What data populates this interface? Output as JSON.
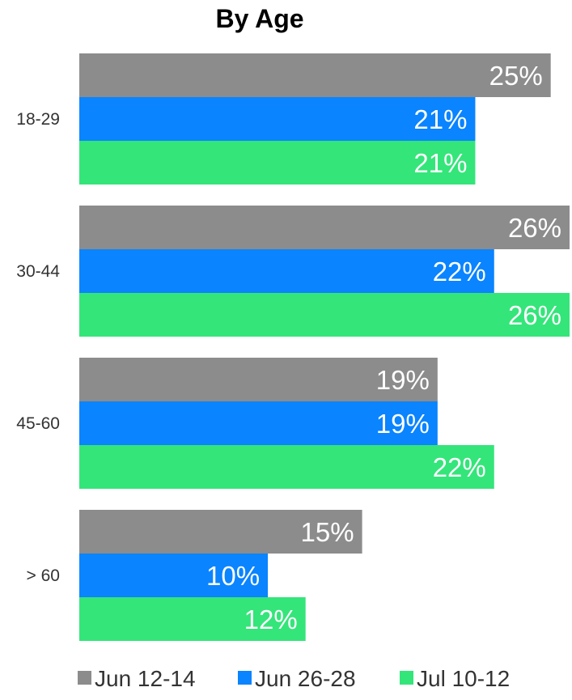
{
  "chart_data": {
    "type": "bar",
    "orientation": "horizontal",
    "title": "By Age",
    "categories": [
      "18-29",
      "30-44",
      "45-60",
      "> 60"
    ],
    "series": [
      {
        "name": "Jun 12-14",
        "color": "#8c8c8c",
        "values": [
          25,
          26,
          19,
          15
        ]
      },
      {
        "name": "Jun 26-28",
        "color": "#0a84ff",
        "values": [
          21,
          22,
          19,
          10
        ]
      },
      {
        "name": "Jul 10-12",
        "color": "#34e57a",
        "values": [
          21,
          26,
          22,
          12
        ]
      }
    ],
    "data_labels": [
      [
        "25%",
        "26%",
        "19%",
        "15%"
      ],
      [
        "21%",
        "22%",
        "19%",
        "10%"
      ],
      [
        "21%",
        "26%",
        "22%",
        "12%"
      ]
    ],
    "value_unit": "%",
    "xlim": [
      0,
      26
    ],
    "grid": false,
    "legend_position": "bottom"
  }
}
